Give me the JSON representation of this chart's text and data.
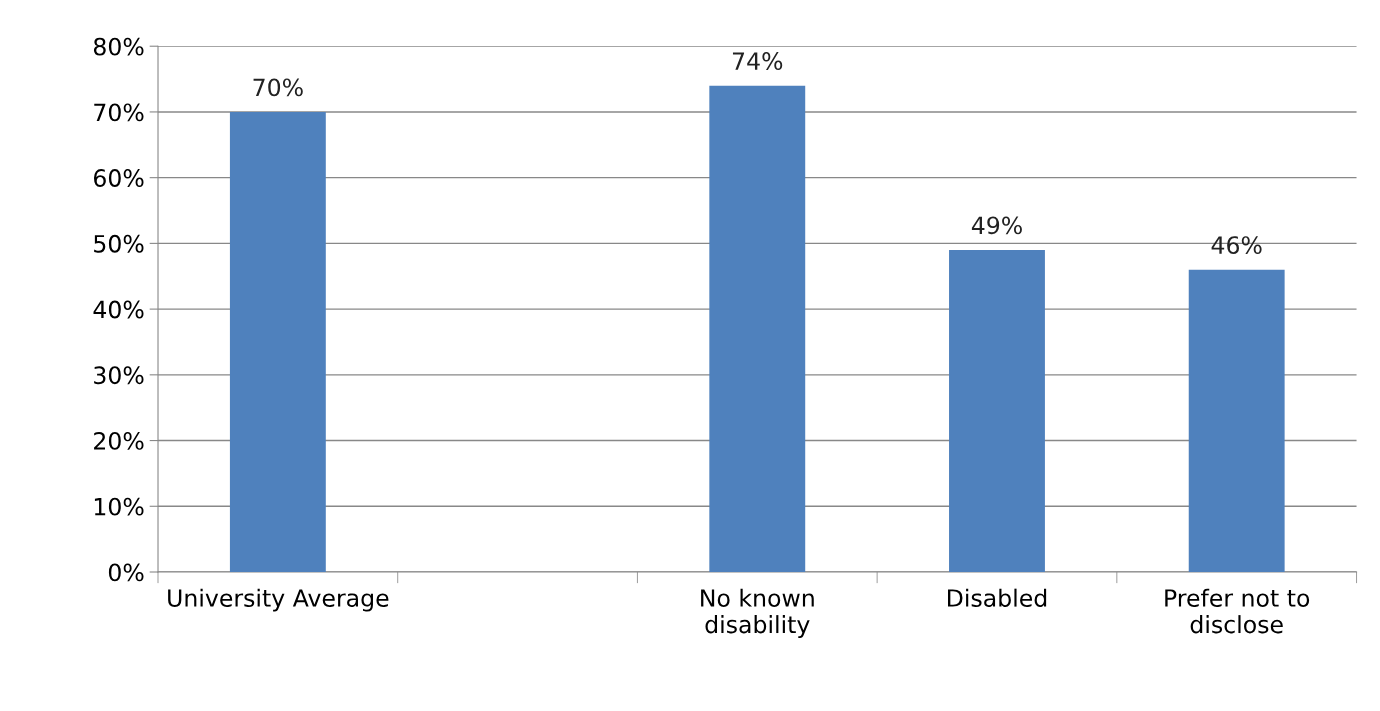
{
  "chart_data": {
    "type": "bar",
    "categories": [
      "University Average",
      null,
      "No known\ndisability",
      "Disabled",
      "Prefer not to\ndisclose"
    ],
    "values": [
      70,
      null,
      74,
      49,
      46
    ],
    "value_labels": [
      "70%",
      null,
      "74%",
      "49%",
      "46%"
    ],
    "color": "#4f81bd",
    "ylim": [
      0,
      80
    ],
    "yticks": [
      {
        "value": 0,
        "label": "0%"
      },
      {
        "value": 10,
        "label": "10%"
      },
      {
        "value": 20,
        "label": "20%"
      },
      {
        "value": 30,
        "label": "30%"
      },
      {
        "value": 40,
        "label": "40%"
      },
      {
        "value": 50,
        "label": "50%"
      },
      {
        "value": 60,
        "label": "60%"
      },
      {
        "value": 70,
        "label": "70%"
      },
      {
        "value": 80,
        "label": "80%"
      }
    ],
    "grid": "y"
  }
}
